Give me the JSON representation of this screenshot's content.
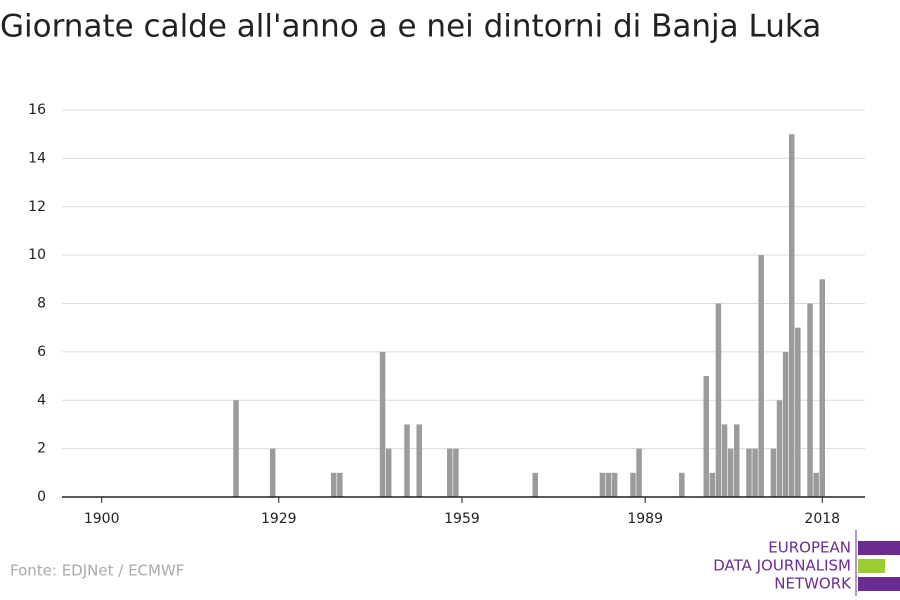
{
  "chart_data": {
    "type": "bar",
    "title": "Giornate calde all'anno a e nei dintorni di Banja Luka",
    "x": [
      1922,
      1928,
      1938,
      1939,
      1946,
      1947,
      1950,
      1952,
      1957,
      1958,
      1971,
      1982,
      1983,
      1984,
      1987,
      1988,
      1995,
      1999,
      2000,
      2001,
      2002,
      2003,
      2004,
      2006,
      2007,
      2008,
      2010,
      2011,
      2012,
      2013,
      2014,
      2016,
      2017,
      2018
    ],
    "values": [
      4,
      2,
      1,
      1,
      6,
      2,
      3,
      3,
      2,
      2,
      1,
      1,
      1,
      1,
      1,
      2,
      1,
      5,
      1,
      8,
      3,
      2,
      3,
      2,
      2,
      10,
      2,
      4,
      6,
      15,
      7,
      8,
      1,
      9
    ],
    "color": "#9b9b9b",
    "xlim": [
      1893.5,
      2025
    ],
    "xticks": [
      1900,
      1929,
      1959,
      1989,
      2018
    ],
    "ylim": [
      0,
      16
    ],
    "yticks": [
      0,
      2,
      4,
      6,
      8,
      10,
      12,
      14,
      16
    ],
    "grid": true,
    "source": "Fonte: EDJNet / ECMWF",
    "logo": [
      "EUROPEAN",
      "DATA JOURNALISM",
      "NETWORK"
    ]
  }
}
